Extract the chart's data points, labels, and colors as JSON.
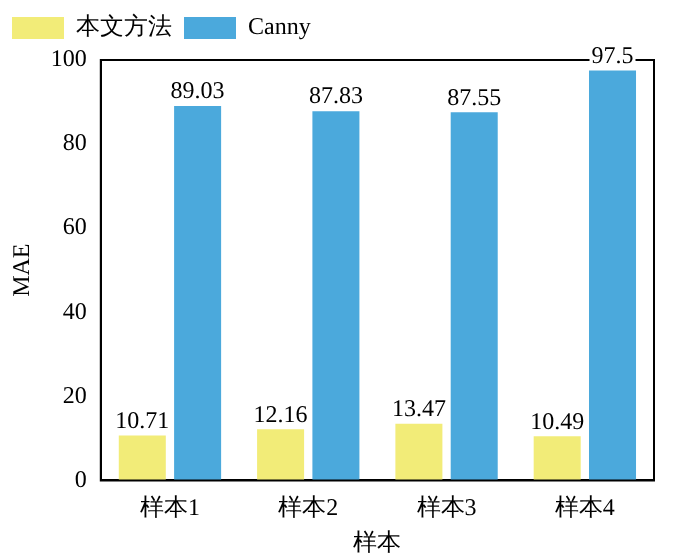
{
  "chart_data": {
    "type": "bar",
    "xlabel": "样本",
    "ylabel": "MAE",
    "categories": [
      "样本1",
      "样本2",
      "样本3",
      "样本4"
    ],
    "series": [
      {
        "name": "本文方法",
        "color": "#f2ec78",
        "values": [
          10.71,
          12.16,
          13.47,
          10.49
        ]
      },
      {
        "name": "Canny",
        "color": "#4ba9dc",
        "values": [
          89.03,
          87.83,
          87.55,
          97.5
        ]
      }
    ],
    "ylim": [
      0,
      100
    ],
    "yticks": [
      0,
      20,
      40,
      60,
      80,
      100
    ],
    "grid": false,
    "legend": "top left",
    "data_labels": true
  }
}
